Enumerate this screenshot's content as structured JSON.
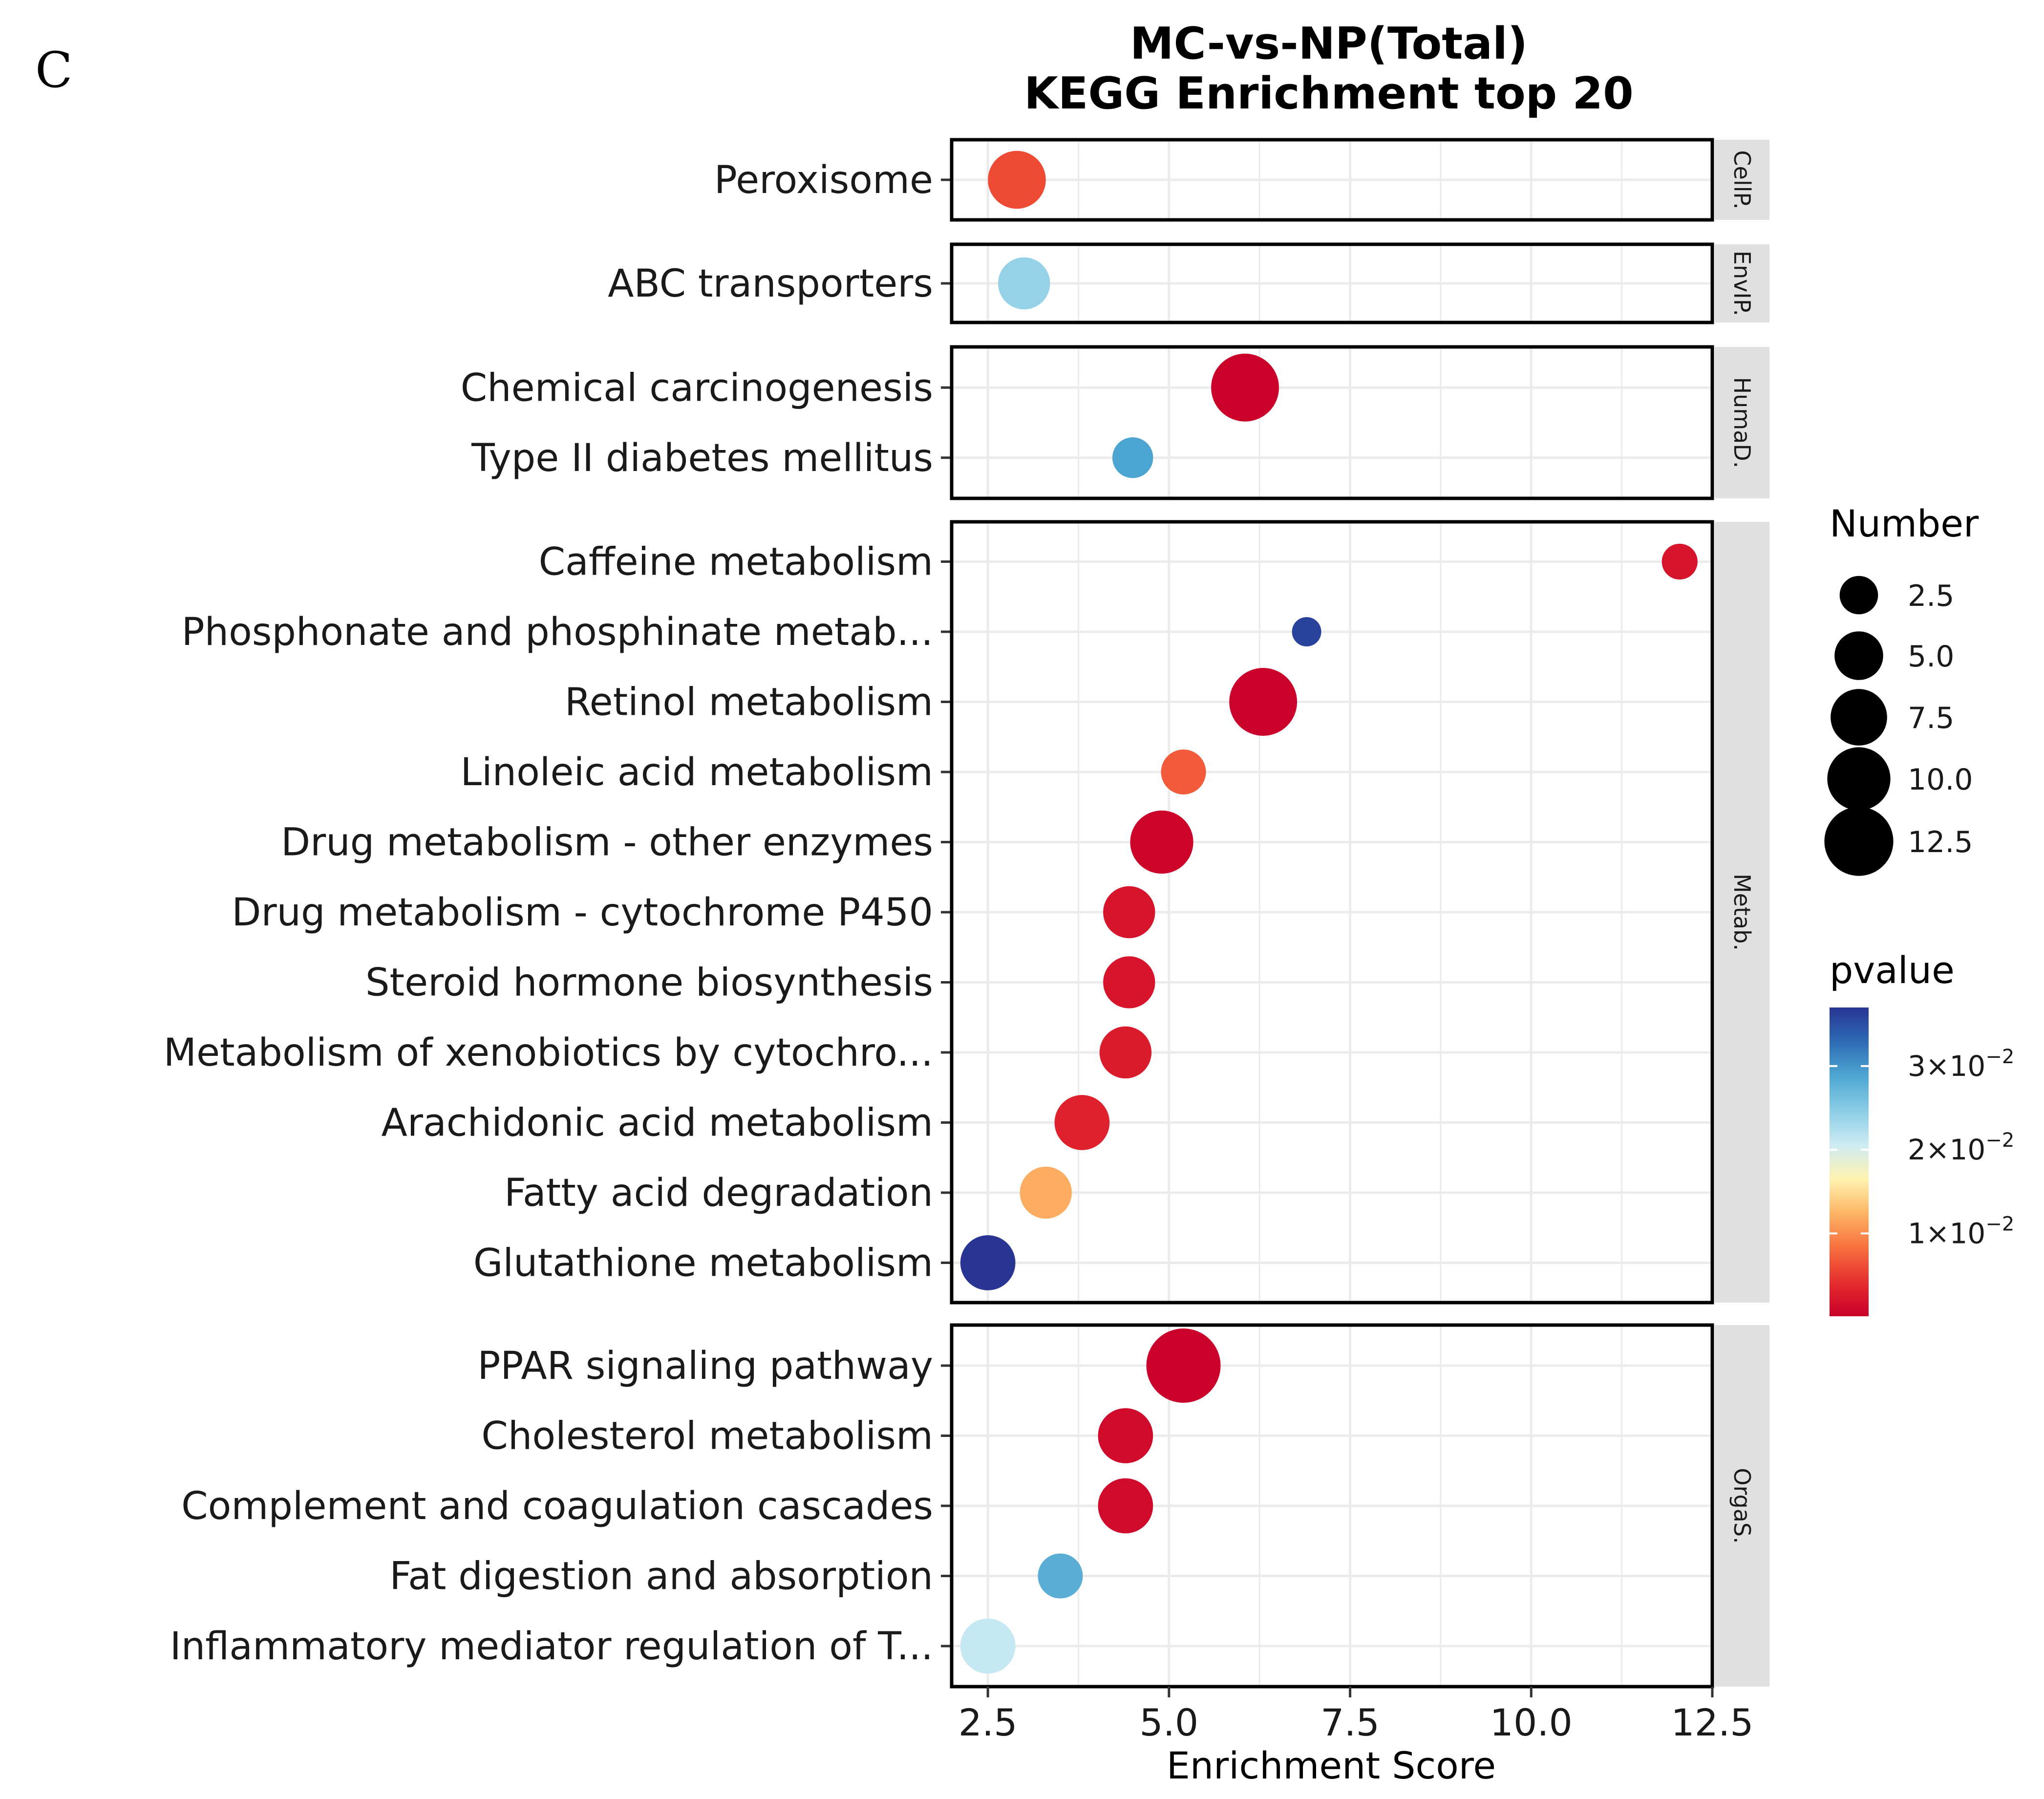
{
  "chart_data": {
    "type": "scatter",
    "panel_label": "C",
    "title": "MC-vs-NP(Total)",
    "subtitle": "KEGG Enrichment top 20",
    "xlabel": "Enrichment Score",
    "ylabel": "",
    "xlim": [
      2.0,
      12.5
    ],
    "x_ticks": [
      2.5,
      5.0,
      7.5,
      10.0,
      12.5
    ],
    "x_tick_labels": [
      "2.5",
      "5.0",
      "7.5",
      "10.0",
      "12.5"
    ],
    "grid": true,
    "facets": [
      {
        "label": "CellP.",
        "points": [
          {
            "pathway": "Peroxisome",
            "enrichment": 2.9,
            "number": 8,
            "pvalue": 0.006
          }
        ]
      },
      {
        "label": "EnvIP.",
        "points": [
          {
            "pathway": "ABC transporters",
            "enrichment": 3.0,
            "number": 6,
            "pvalue": 0.024
          }
        ]
      },
      {
        "label": "HumaD.",
        "points": [
          {
            "pathway": "Chemical carcinogenesis",
            "enrichment": 6.05,
            "number": 12,
            "pvalue": 0.0003
          },
          {
            "pathway": "Type II diabetes mellitus",
            "enrichment": 4.5,
            "number": 3,
            "pvalue": 0.029
          }
        ]
      },
      {
        "label": "Metab.",
        "points": [
          {
            "pathway": "Caffeine metabolism",
            "enrichment": 12.05,
            "number": 2,
            "pvalue": 0.002
          },
          {
            "pathway": "Phosphonate and phosphinate metab...",
            "enrichment": 6.9,
            "number": 1,
            "pvalue": 0.036
          },
          {
            "pathway": "Retinol metabolism",
            "enrichment": 6.3,
            "number": 12,
            "pvalue": 0.0002
          },
          {
            "pathway": "Linoleic acid metabolism",
            "enrichment": 5.2,
            "number": 4,
            "pvalue": 0.007
          },
          {
            "pathway": "Drug metabolism - other enzymes",
            "enrichment": 4.9,
            "number": 10,
            "pvalue": 0.0005
          },
          {
            "pathway": "Drug metabolism - cytochrome P450",
            "enrichment": 4.45,
            "number": 6,
            "pvalue": 0.002
          },
          {
            "pathway": "Steroid hormone biosynthesis",
            "enrichment": 4.45,
            "number": 6,
            "pvalue": 0.002
          },
          {
            "pathway": "Metabolism of xenobiotics by cytochro...",
            "enrichment": 4.4,
            "number": 6,
            "pvalue": 0.0025
          },
          {
            "pathway": "Arachidonic acid metabolism",
            "enrichment": 3.8,
            "number": 7,
            "pvalue": 0.003
          },
          {
            "pathway": "Fatty acid degradation",
            "enrichment": 3.3,
            "number": 6,
            "pvalue": 0.012
          },
          {
            "pathway": "Glutathione metabolism",
            "enrichment": 2.5,
            "number": 7,
            "pvalue": 0.037
          }
        ]
      },
      {
        "label": "OrgaS.",
        "points": [
          {
            "pathway": "PPAR signaling pathway",
            "enrichment": 5.2,
            "number": 15,
            "pvalue": 0.0002
          },
          {
            "pathway": "Cholesterol metabolism",
            "enrichment": 4.4,
            "number": 7,
            "pvalue": 0.001
          },
          {
            "pathway": "Complement and coagulation cascades",
            "enrichment": 4.4,
            "number": 7,
            "pvalue": 0.001
          },
          {
            "pathway": "Fat digestion and absorption",
            "enrichment": 3.5,
            "number": 4,
            "pvalue": 0.028
          },
          {
            "pathway": "Inflammatory mediator regulation of T...",
            "enrichment": 2.5,
            "number": 7,
            "pvalue": 0.021
          }
        ]
      }
    ],
    "legend_size": {
      "title": "Number",
      "items": [
        {
          "label": "2.5",
          "value": 2.5
        },
        {
          "label": "5.0",
          "value": 5.0
        },
        {
          "label": "7.5",
          "value": 7.5
        },
        {
          "label": "10.0",
          "value": 10.0
        },
        {
          "label": "12.5",
          "value": 12.5
        }
      ]
    },
    "legend_color": {
      "title": "pvalue",
      "min": 0.0001,
      "max": 0.037,
      "ticks": [
        {
          "value": 0.01,
          "mantissa": "1",
          "exponent": "−2"
        },
        {
          "value": 0.02,
          "mantissa": "2",
          "exponent": "−2"
        },
        {
          "value": 0.03,
          "mantissa": "3",
          "exponent": "−2"
        }
      ],
      "colors": [
        "#C9002A",
        "#E62E2E",
        "#F8703F",
        "#FDB465",
        "#FFF3B0",
        "#CDEBF3",
        "#8ACDE6",
        "#4EA7D2",
        "#2E6BB5",
        "#283593"
      ]
    }
  }
}
